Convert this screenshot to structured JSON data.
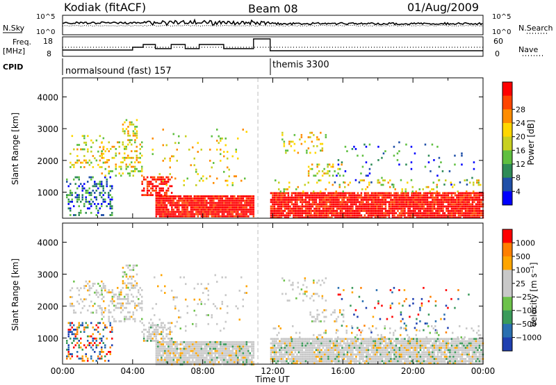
{
  "header": {
    "station": "Kodiak (fitACF)",
    "beam": "Beam 08",
    "date": "01/Aug/2009"
  },
  "top_panels": {
    "nsky_label": "N.Sky",
    "nsky_ticks": [
      "10^5",
      "10^0"
    ],
    "nsearch_label": "N.Search",
    "nsearch_ticks": [
      "10^5",
      "10^0"
    ],
    "freq_label": "Freq.",
    "freq_unit": "[MHz]",
    "freq_ticks": [
      "18",
      "8"
    ],
    "nave_label": "Nave",
    "nave_ticks": [
      "60",
      "0"
    ],
    "cpid_label": "CPID",
    "cpid_segments": [
      {
        "label": "normalsound (fast) 157",
        "start": "00:00",
        "end": "11:51"
      },
      {
        "label": "themis 3300",
        "start": "11:51",
        "end": "24:00"
      }
    ]
  },
  "colors": {
    "power_scale": [
      "#0000ff",
      "#1f4fa8",
      "#2e8b57",
      "#5fbf40",
      "#c8d020",
      "#ffd700",
      "#ff8c00",
      "#ff4500",
      "#ff0000"
    ],
    "velocity_scale": [
      "#1f3fb0",
      "#2a6fb0",
      "#3a9a5a",
      "#6cc24a",
      "#c8c8c8",
      "#c8c8c8",
      "#ffa500",
      "#ff7f00",
      "#ff0000"
    ]
  },
  "chart_data": [
    {
      "type": "heatmap",
      "name": "power",
      "xlabel": "",
      "ylabel": "Slant Range [km]",
      "xlim_hours": [
        0,
        24
      ],
      "ylim": [
        180,
        4600
      ],
      "y_ticks": [
        "1000",
        "2000",
        "3000",
        "4000"
      ],
      "colorbar": {
        "label": "Power [dB]",
        "ticks": [
          "4",
          "8",
          "12",
          "16",
          "20",
          "24",
          "28"
        ]
      },
      "data_gap_hours": [
        10.9,
        11.85
      ]
    },
    {
      "type": "heatmap",
      "name": "velocity",
      "xlabel": "Time UT",
      "ylabel": "Slant Range [km]",
      "xlim_hours": [
        0,
        24
      ],
      "ylim": [
        180,
        4600
      ],
      "x_ticks": [
        "00:00",
        "04:00",
        "08:00",
        "12:00",
        "16:00",
        "20:00",
        "00:00"
      ],
      "y_ticks": [
        "1000",
        "2000",
        "3000",
        "4000"
      ],
      "colorbar": {
        "label": "Velocity [m s⁻¹]",
        "ticks": [
          "1000",
          "500",
          "100",
          "25",
          "−25",
          "−100",
          "−500",
          "−1000"
        ]
      },
      "data_gap_hours": [
        10.9,
        11.85
      ]
    }
  ]
}
